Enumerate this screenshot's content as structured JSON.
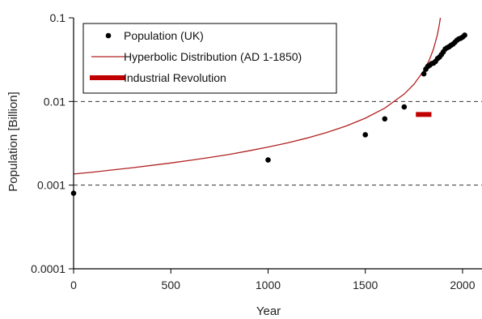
{
  "chart_data": {
    "type": "scatter",
    "title": "",
    "xlabel": "Year",
    "ylabel": "Population [Billion]",
    "xlim": [
      0,
      2100
    ],
    "ylim": [
      0.0001,
      0.1
    ],
    "y_scale": "log",
    "x_ticks": [
      0,
      500,
      1000,
      1500,
      2000
    ],
    "x_tick_labels": [
      "0",
      "500",
      "1000",
      "1500",
      "2000"
    ],
    "y_ticks": [
      0.0001,
      0.001,
      0.01,
      0.1
    ],
    "y_tick_labels": [
      "0.0001",
      "0.001",
      "0.01",
      "0.1"
    ],
    "reference_lines": [
      0.001,
      0.01
    ],
    "grid": false,
    "legend_position": "top-left",
    "colors": {
      "points": "#000000",
      "curve": "#b22222",
      "bar": "#c00000",
      "dashed": "#333333"
    },
    "series": [
      {
        "name": "Population (UK)",
        "kind": "scatter",
        "x": [
          0,
          1000,
          1500,
          1600,
          1700,
          1801,
          1811,
          1821,
          1831,
          1841,
          1851,
          1861,
          1871,
          1881,
          1891,
          1901,
          1911,
          1921,
          1931,
          1941,
          1951,
          1961,
          1971,
          1981,
          1991,
          2001,
          2011
        ],
        "y": [
          0.0008,
          0.002,
          0.004,
          0.0062,
          0.0086,
          0.0214,
          0.0243,
          0.0262,
          0.0271,
          0.0284,
          0.0288,
          0.0301,
          0.0325,
          0.0339,
          0.0362,
          0.0391,
          0.0424,
          0.0439,
          0.0451,
          0.047,
          0.0486,
          0.051,
          0.054,
          0.056,
          0.057,
          0.059,
          0.062
        ]
      },
      {
        "name": "Hyperbolic Distribution (AD 1-1850)",
        "kind": "line",
        "formula": "y = 2.6 / (1912 - x)",
        "x": [
          0,
          100,
          200,
          300,
          400,
          500,
          600,
          700,
          800,
          900,
          1000,
          1100,
          1200,
          1300,
          1400,
          1500,
          1600,
          1700,
          1750,
          1800,
          1830,
          1850,
          1870,
          1880,
          1886
        ],
        "y": [
          0.00136,
          0.00143,
          0.00152,
          0.00161,
          0.00172,
          0.00184,
          0.00198,
          0.00214,
          0.00233,
          0.00257,
          0.00285,
          0.0032,
          0.00365,
          0.00425,
          0.00508,
          0.00631,
          0.00833,
          0.01226,
          0.01605,
          0.02321,
          0.03171,
          0.04194,
          0.0619,
          0.08125,
          0.1
        ]
      },
      {
        "name": "Industrial Revolution",
        "kind": "range",
        "x_start": 1760,
        "x_end": 1840,
        "y": 0.007
      }
    ]
  }
}
